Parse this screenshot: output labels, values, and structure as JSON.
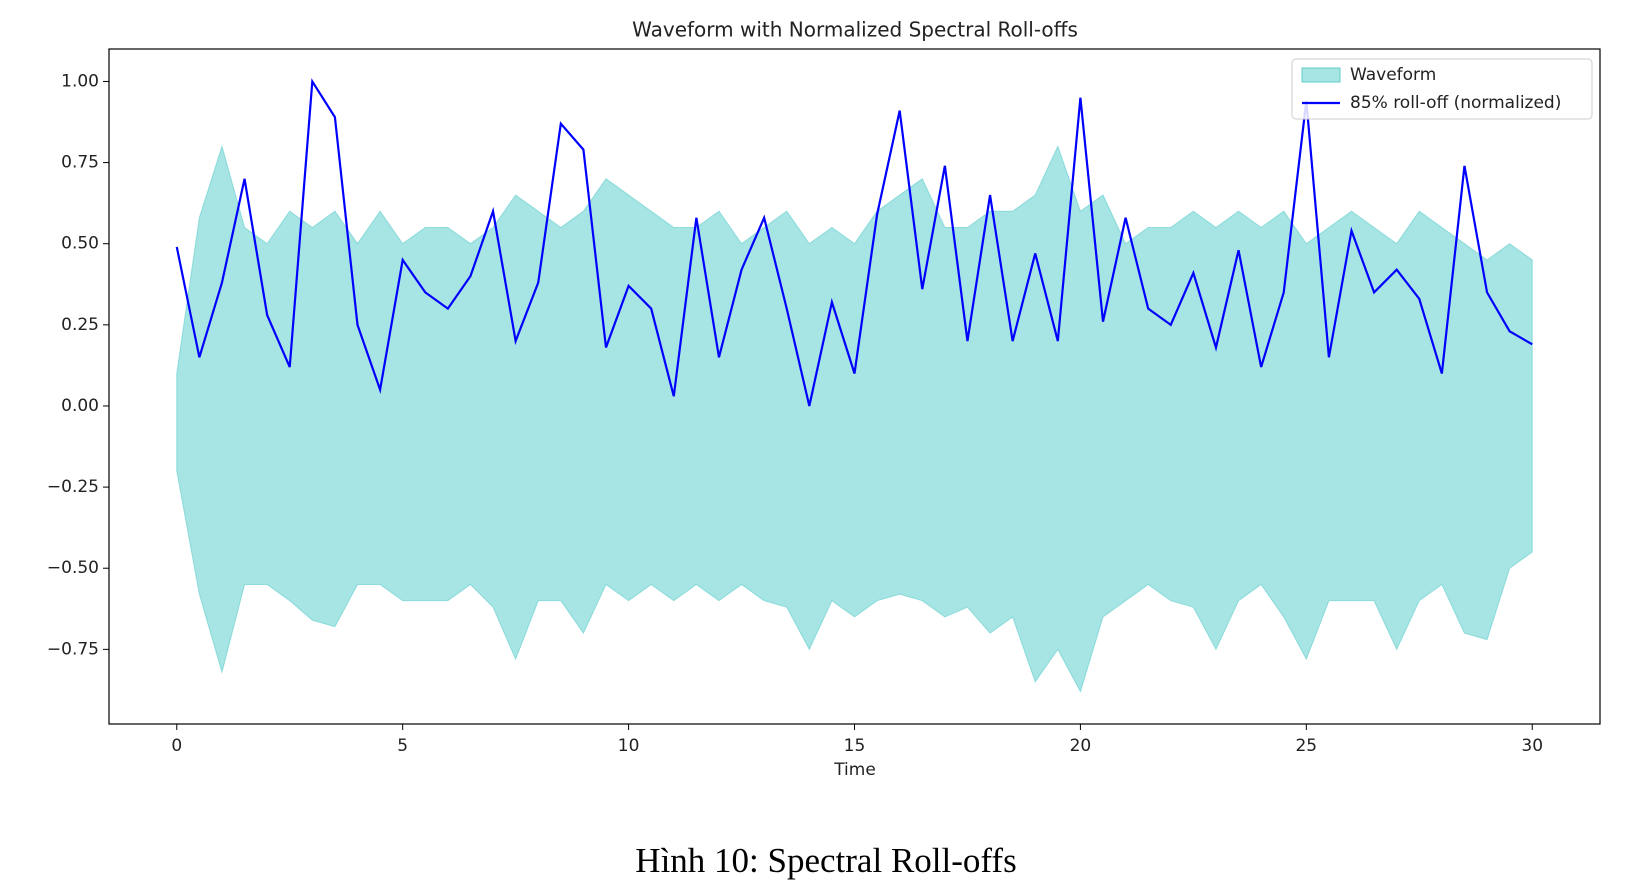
{
  "chart_data": {
    "type": "line",
    "title": "Waveform with Normalized Spectral Roll-offs",
    "xlabel": "Time",
    "caption": "Hình 10: Spectral Roll-offs",
    "x": [
      0,
      0.5,
      1,
      1.5,
      2,
      2.5,
      3,
      3.5,
      4,
      4.5,
      5,
      5.5,
      6,
      6.5,
      7,
      7.5,
      8,
      8.5,
      9,
      9.5,
      10,
      10.5,
      11,
      11.5,
      12,
      12.5,
      13,
      13.5,
      14,
      14.5,
      15,
      15.5,
      16,
      16.5,
      17,
      17.5,
      18,
      18.5,
      19,
      19.5,
      20,
      20.5,
      21,
      21.5,
      22,
      22.5,
      23,
      23.5,
      24,
      24.5,
      25,
      25.5,
      26,
      26.5,
      27,
      27.5,
      28,
      28.5,
      29,
      29.5,
      30
    ],
    "series": [
      {
        "name": "Waveform",
        "kind": "area",
        "color": "#5fcdcd",
        "values": [
          0.1,
          0.58,
          0.8,
          0.55,
          0.5,
          0.6,
          0.55,
          0.6,
          0.5,
          0.6,
          0.5,
          0.55,
          0.55,
          0.5,
          0.55,
          0.65,
          0.6,
          0.55,
          0.6,
          0.7,
          0.65,
          0.6,
          0.55,
          0.55,
          0.6,
          0.5,
          0.55,
          0.6,
          0.5,
          0.55,
          0.5,
          0.6,
          0.65,
          0.7,
          0.55,
          0.55,
          0.6,
          0.6,
          0.65,
          0.8,
          0.6,
          0.65,
          0.5,
          0.55,
          0.55,
          0.6,
          0.55,
          0.6,
          0.55,
          0.6,
          0.5,
          0.55,
          0.6,
          0.55,
          0.5,
          0.6,
          0.55,
          0.5,
          0.45,
          0.5,
          0.45
        ],
        "lower": [
          -0.2,
          -0.58,
          -0.82,
          -0.55,
          -0.55,
          -0.6,
          -0.66,
          -0.68,
          -0.55,
          -0.55,
          -0.6,
          -0.6,
          -0.6,
          -0.55,
          -0.62,
          -0.78,
          -0.6,
          -0.6,
          -0.7,
          -0.55,
          -0.6,
          -0.55,
          -0.6,
          -0.55,
          -0.6,
          -0.55,
          -0.6,
          -0.62,
          -0.75,
          -0.6,
          -0.65,
          -0.6,
          -0.58,
          -0.6,
          -0.65,
          -0.62,
          -0.7,
          -0.65,
          -0.85,
          -0.75,
          -0.88,
          -0.65,
          -0.6,
          -0.55,
          -0.6,
          -0.62,
          -0.75,
          -0.6,
          -0.55,
          -0.65,
          -0.78,
          -0.6,
          -0.6,
          -0.6,
          -0.75,
          -0.6,
          -0.55,
          -0.7,
          -0.72,
          -0.5,
          -0.45
        ]
      },
      {
        "name": "85% roll-off (normalized)",
        "kind": "line",
        "color": "#0000ff",
        "values": [
          0.49,
          0.15,
          0.38,
          0.7,
          0.28,
          0.12,
          1.0,
          0.89,
          0.25,
          0.05,
          0.45,
          0.35,
          0.3,
          0.4,
          0.6,
          0.2,
          0.38,
          0.87,
          0.79,
          0.18,
          0.37,
          0.3,
          0.03,
          0.58,
          0.15,
          0.42,
          0.58,
          0.3,
          0.0,
          0.32,
          0.1,
          0.59,
          0.91,
          0.36,
          0.74,
          0.2,
          0.65,
          0.2,
          0.47,
          0.2,
          0.95,
          0.26,
          0.58,
          0.3,
          0.25,
          0.41,
          0.18,
          0.48,
          0.12,
          0.35,
          0.94,
          0.15,
          0.54,
          0.35,
          0.42,
          0.33,
          0.1,
          0.74,
          0.35,
          0.23,
          0.19
        ]
      }
    ],
    "xlim": [
      -1.5,
      31.5
    ],
    "ylim": [
      -0.98,
      1.1
    ],
    "xticks": [
      0,
      5,
      10,
      15,
      20,
      25,
      30
    ],
    "yticks": [
      {
        "value": 1,
        "label": "1.00"
      },
      {
        "value": 0.75,
        "label": "0.75"
      },
      {
        "value": 0.5,
        "label": "0.50"
      },
      {
        "value": 0.25,
        "label": "0.25"
      },
      {
        "value": 0,
        "label": "0.00"
      },
      {
        "value": -0.25,
        "label": "−0.25"
      },
      {
        "value": -0.5,
        "label": "−0.50"
      },
      {
        "value": -0.75,
        "label": "−0.75"
      }
    ],
    "legend": "upper right"
  }
}
